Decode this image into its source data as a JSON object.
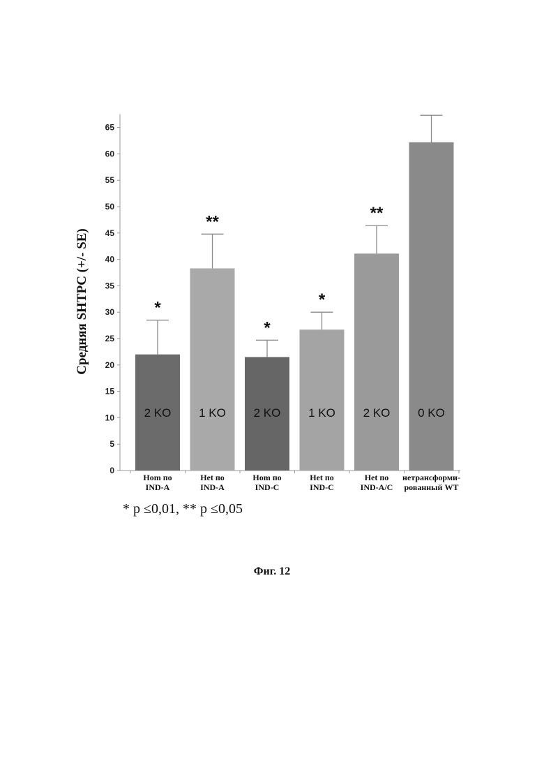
{
  "chart_data": {
    "type": "bar",
    "ylabel": "Средняя SHTPC (+/- SE)",
    "ylim": [
      0,
      67
    ],
    "yticks": [
      0,
      5,
      10,
      15,
      20,
      25,
      30,
      35,
      40,
      45,
      50,
      55,
      60,
      65
    ],
    "grid": false,
    "categories": [
      [
        "Hom по",
        "IND-A"
      ],
      [
        "Het по",
        "IND-A"
      ],
      [
        "Hom по",
        "IND-C"
      ],
      [
        "Het по",
        "IND-C"
      ],
      [
        "Het по",
        "IND-A/C"
      ],
      [
        "нетрансформи-",
        "рованный WT"
      ]
    ],
    "values": [
      22,
      38.3,
      21.5,
      26.7,
      41.1,
      62.2
    ],
    "error_upper": [
      28.5,
      44.8,
      24.7,
      30.0,
      46.4,
      67.3
    ],
    "bar_labels": [
      "2 KO",
      "1 KO",
      "2 KO",
      "1 KO",
      "2 KO",
      "0 KO"
    ],
    "significance": [
      "*",
      "**",
      "*",
      "*",
      "**",
      ""
    ],
    "colors": [
      "#6b6b6b",
      "#a9a9a9",
      "#666666",
      "#a4a4a4",
      "#9a9a9a",
      "#8a8a8a"
    ]
  },
  "footnote": "* p ≤0,01, ** p ≤0,05",
  "caption": "Фиг. 12"
}
